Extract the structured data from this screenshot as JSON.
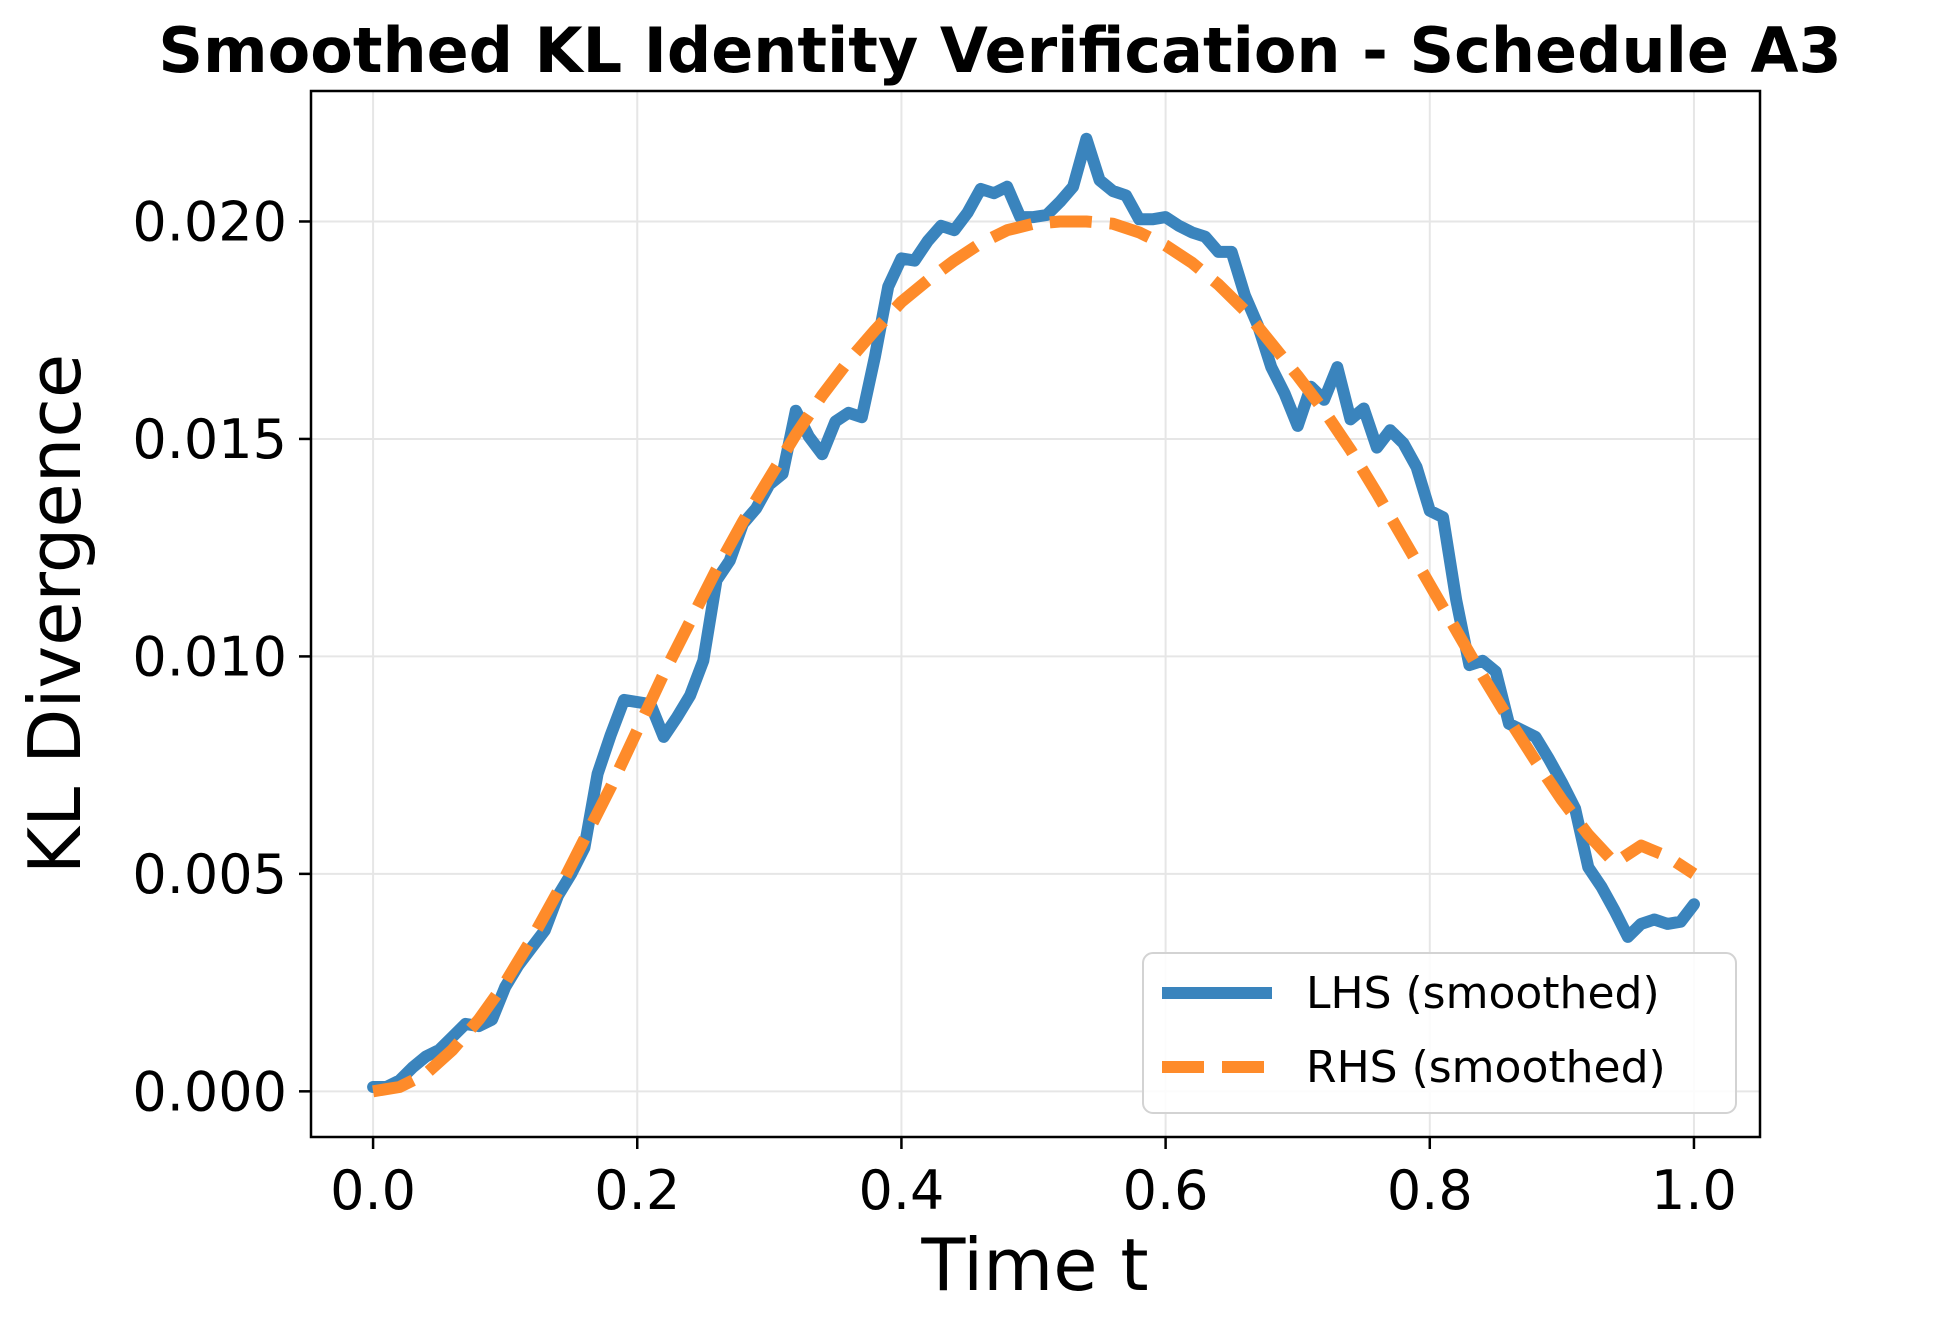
{
  "chart_data": {
    "type": "line",
    "title": "Smoothed KL Identity Verification - Schedule A3",
    "xlabel": "Time t",
    "ylabel": "KL Divergence",
    "xlim": [
      -0.047,
      1.05
    ],
    "ylim": [
      -0.00105,
      0.023
    ],
    "xticks": [
      0.0,
      0.2,
      0.4,
      0.6,
      0.8,
      1.0
    ],
    "xtick_labels": [
      "0.0",
      "0.2",
      "0.4",
      "0.6",
      "0.8",
      "1.0"
    ],
    "yticks": [
      0.0,
      0.005,
      0.01,
      0.015,
      0.02
    ],
    "ytick_labels": [
      "0.000",
      "0.005",
      "0.010",
      "0.015",
      "0.020"
    ],
    "grid": true,
    "legend_position": "lower-right",
    "series": [
      {
        "name": "LHS (smoothed)",
        "color": "#3a84bd",
        "style": "solid",
        "x": [
          0.0,
          0.01,
          0.02,
          0.03,
          0.04,
          0.05,
          0.06,
          0.07,
          0.08,
          0.09,
          0.1,
          0.11,
          0.12,
          0.13,
          0.14,
          0.15,
          0.16,
          0.17,
          0.18,
          0.19,
          0.2,
          0.21,
          0.22,
          0.23,
          0.24,
          0.25,
          0.26,
          0.27,
          0.28,
          0.29,
          0.3,
          0.31,
          0.32,
          0.33,
          0.34,
          0.35,
          0.36,
          0.37,
          0.38,
          0.39,
          0.4,
          0.41,
          0.42,
          0.43,
          0.44,
          0.45,
          0.46,
          0.47,
          0.48,
          0.49,
          0.5,
          0.51,
          0.52,
          0.53,
          0.54,
          0.55,
          0.56,
          0.57,
          0.58,
          0.59,
          0.6,
          0.61,
          0.62,
          0.63,
          0.64,
          0.65,
          0.66,
          0.67,
          0.68,
          0.69,
          0.7,
          0.71,
          0.72,
          0.73,
          0.74,
          0.75,
          0.76,
          0.77,
          0.78,
          0.79,
          0.8,
          0.81,
          0.82,
          0.83,
          0.84,
          0.85,
          0.86,
          0.87,
          0.88,
          0.89,
          0.9,
          0.91,
          0.92,
          0.93,
          0.94,
          0.95,
          0.96,
          0.97,
          0.98,
          0.99,
          1.0
        ],
        "y": [
          0.0001,
          0.0001,
          0.00025,
          0.00055,
          0.0008,
          0.00095,
          0.00125,
          0.00155,
          0.0015,
          0.00165,
          0.0024,
          0.0029,
          0.0033,
          0.0037,
          0.0045,
          0.005,
          0.0056,
          0.0073,
          0.0082,
          0.009,
          0.00895,
          0.0089,
          0.00815,
          0.0086,
          0.0091,
          0.0099,
          0.01175,
          0.0122,
          0.01305,
          0.0134,
          0.01395,
          0.0142,
          0.01565,
          0.01505,
          0.01465,
          0.0154,
          0.0156,
          0.0155,
          0.0169,
          0.0185,
          0.01915,
          0.0191,
          0.01955,
          0.0199,
          0.0198,
          0.0202,
          0.02075,
          0.02065,
          0.0208,
          0.0201,
          0.0201,
          0.02015,
          0.02045,
          0.0208,
          0.0219,
          0.02095,
          0.0207,
          0.0206,
          0.02005,
          0.02005,
          0.0201,
          0.0199,
          0.01975,
          0.01965,
          0.0193,
          0.0193,
          0.0183,
          0.0176,
          0.01665,
          0.01605,
          0.0153,
          0.0162,
          0.0159,
          0.01665,
          0.01545,
          0.0157,
          0.0148,
          0.0152,
          0.0149,
          0.01435,
          0.01335,
          0.0132,
          0.0113,
          0.0098,
          0.0099,
          0.00965,
          0.00845,
          0.0083,
          0.00815,
          0.00765,
          0.0071,
          0.0065,
          0.00515,
          0.0047,
          0.00415,
          0.00355,
          0.00385,
          0.00395,
          0.00385,
          0.0039,
          0.0043
        ]
      },
      {
        "name": "RHS (smoothed)",
        "color": "#fe8b2a",
        "style": "dashed",
        "x": [
          0.0,
          0.02,
          0.04,
          0.06,
          0.08,
          0.1,
          0.12,
          0.14,
          0.16,
          0.18,
          0.2,
          0.22,
          0.24,
          0.26,
          0.28,
          0.3,
          0.32,
          0.34,
          0.36,
          0.38,
          0.4,
          0.42,
          0.44,
          0.46,
          0.48,
          0.5,
          0.52,
          0.54,
          0.56,
          0.58,
          0.6,
          0.62,
          0.64,
          0.66,
          0.68,
          0.7,
          0.72,
          0.74,
          0.76,
          0.78,
          0.8,
          0.82,
          0.84,
          0.86,
          0.88,
          0.9,
          0.92,
          0.94,
          0.96,
          0.98,
          1.0
        ],
        "y": [
          0.0,
          0.0001,
          0.0004,
          0.00095,
          0.00165,
          0.0025,
          0.0035,
          0.0046,
          0.0058,
          0.007,
          0.0083,
          0.0096,
          0.0108,
          0.012,
          0.0131,
          0.0141,
          0.0151,
          0.016,
          0.0168,
          0.0175,
          0.01815,
          0.01865,
          0.0191,
          0.0195,
          0.0198,
          0.01995,
          0.02,
          0.02,
          0.01995,
          0.01975,
          0.01945,
          0.01905,
          0.01855,
          0.01795,
          0.0172,
          0.01645,
          0.01565,
          0.01475,
          0.01375,
          0.0127,
          0.01165,
          0.0106,
          0.00955,
          0.00855,
          0.0076,
          0.0067,
          0.0059,
          0.00525,
          0.00565,
          0.0054,
          0.005
        ]
      }
    ]
  }
}
